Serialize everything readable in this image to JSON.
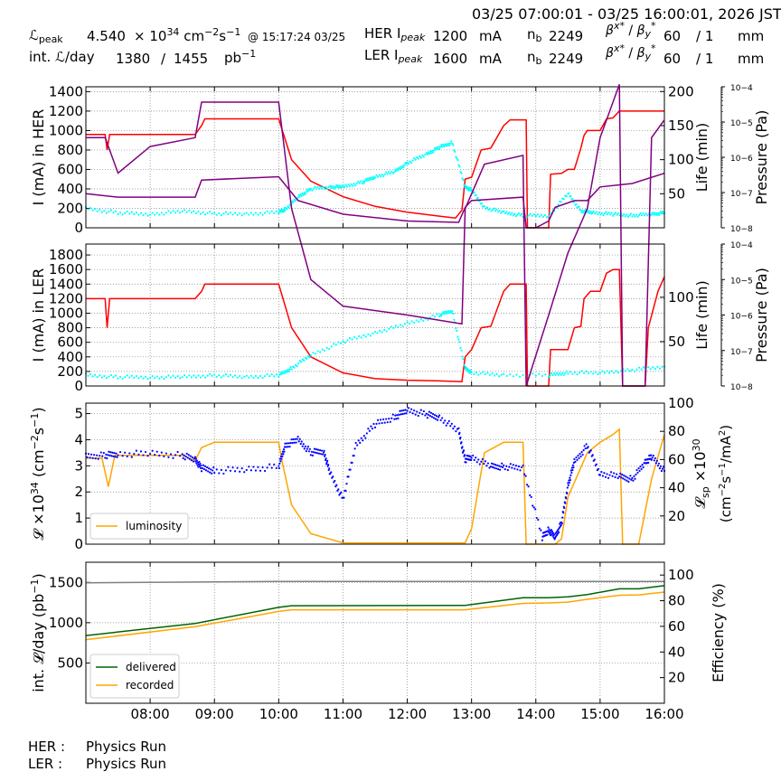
{
  "header": {
    "time_range": "03/25 07:00:01 - 03/25 16:00:01, 2026 JST",
    "lpeak_label": "peak",
    "lpeak_value": "4.540",
    "lpeak_unit_prefix": "× 10",
    "lpeak_exp": "34",
    "lpeak_unit": "cm",
    "lpeak_unit_exp1": "−2",
    "lpeak_unit_s": "s",
    "lpeak_unit_exp2": "−1",
    "lpeak_time": "@ 15:17:24 03/25",
    "intl_label": "int.",
    "intl_suffix": "/day",
    "intl_value1": "1380",
    "intl_sep": "/",
    "intl_value2": "1455",
    "intl_unit": "pb",
    "intl_unit_exp": "−1",
    "her_label": "HER I",
    "her_sub": "peak",
    "her_value": "1200",
    "her_unit": "mA",
    "her_nb_label": "n",
    "her_nb_sub": "b",
    "her_nb": "2249",
    "her_beta_label": "β",
    "her_beta_x": "60",
    "her_beta_sep": "/ 1",
    "her_beta_unit": "mm",
    "ler_label": "LER I",
    "ler_sub": "peak",
    "ler_value": "1600",
    "ler_unit": "mA",
    "ler_nb_label": "n",
    "ler_nb_sub": "b",
    "ler_nb": "2249",
    "ler_beta_x": "60",
    "ler_beta_sep": "/ 1",
    "ler_beta_unit": "mm"
  },
  "footer": {
    "her_label": "HER :",
    "her_status": "Physics Run",
    "ler_label": "LER :",
    "ler_status": "Physics Run"
  },
  "colors": {
    "current": "#ff0000",
    "life": "#00ffff",
    "pressure": "#800080",
    "luminosity": "#ffa500",
    "lsp": "#0000ff",
    "delivered": "#006400",
    "recorded": "#ffa500",
    "efficiency": "#808080",
    "grid": "#808080"
  },
  "chart_data": [
    {
      "type": "line",
      "panel": "HER",
      "x_ticks": [
        "08:00",
        "09:00",
        "10:00",
        "11:00",
        "12:00",
        "13:00",
        "14:00",
        "15:00",
        "16:00"
      ],
      "xlim": [
        7.0,
        16.0
      ],
      "ylabel": "I (mA) in HER",
      "ylim": [
        0,
        1450
      ],
      "yticks": [
        0,
        200,
        400,
        600,
        800,
        1000,
        1200,
        1400
      ],
      "y2label": "Life (min)",
      "y2lim": [
        0,
        207
      ],
      "y2ticks": [
        50,
        100,
        150,
        200
      ],
      "y3label": "Pressure (Pa)",
      "y3ticks": [
        "10−8",
        "10−7",
        "10−6",
        "10−5",
        "10−4"
      ],
      "series": [
        {
          "role": "current",
          "x": [
            7.0,
            7.3,
            7.33,
            7.37,
            7.4,
            8.7,
            8.8,
            8.85,
            10.0,
            10.2,
            10.5,
            11.0,
            11.5,
            12.0,
            12.5,
            12.75,
            12.85,
            12.9,
            13.0,
            13.15,
            13.3,
            13.5,
            13.6,
            13.85,
            13.87,
            14.2,
            14.23,
            14.4,
            14.5,
            14.6,
            14.7,
            14.75,
            14.8,
            15.0,
            15.1,
            15.2,
            15.3,
            16.0
          ],
          "y": [
            960,
            960,
            800,
            960,
            960,
            960,
            1050,
            1120,
            1120,
            700,
            480,
            320,
            220,
            160,
            120,
            100,
            180,
            500,
            520,
            800,
            820,
            1050,
            1110,
            1110,
            0,
            0,
            550,
            560,
            600,
            600,
            820,
            950,
            1000,
            1000,
            1120,
            1130,
            1200,
            1200
          ]
        },
        {
          "role": "life",
          "x": [
            7.0,
            7.5,
            8.0,
            8.5,
            9.0,
            9.5,
            10.0,
            10.1,
            10.3,
            10.5,
            10.8,
            11.0,
            11.3,
            11.5,
            11.8,
            12.0,
            12.3,
            12.5,
            12.7,
            12.9,
            13.0,
            13.2,
            13.5,
            13.8,
            14.2,
            14.5,
            14.7,
            14.9,
            15.2,
            15.5,
            15.8,
            16.0
          ],
          "y": [
            28,
            22,
            20,
            24,
            21,
            20,
            23,
            27,
            45,
            57,
            60,
            60,
            67,
            75,
            82,
            95,
            108,
            118,
            125,
            60,
            55,
            30,
            22,
            18,
            18,
            50,
            25,
            22,
            20,
            18,
            20,
            22
          ]
        },
        {
          "role": "pressure",
          "x": [
            7.0,
            7.5,
            8.0,
            8.7,
            8.8,
            10.0,
            10.3,
            11.0,
            12.0,
            12.8,
            12.9,
            13.0,
            13.8,
            13.85,
            14.0,
            14.2,
            14.3,
            14.6,
            14.8,
            15.0,
            15.5,
            16.0
          ],
          "y": [
            50,
            45,
            45,
            45,
            70,
            75,
            40,
            20,
            10,
            8,
            30,
            40,
            45,
            0,
            0,
            10,
            30,
            40,
            40,
            60,
            65,
            80
          ]
        }
      ]
    },
    {
      "type": "line",
      "panel": "LER",
      "xlim": [
        7.0,
        16.0
      ],
      "ylabel": "I (mA) in LER",
      "ylim": [
        0,
        1950
      ],
      "yticks": [
        0,
        200,
        400,
        600,
        800,
        1000,
        1200,
        1400,
        1600,
        1800
      ],
      "y2label": "Life (min)",
      "y2lim": [
        0,
        160
      ],
      "y2ticks": [
        50,
        100
      ],
      "y3label": "Pressure (Pa)",
      "y3ticks": [
        "10−8",
        "10−7",
        "10−6",
        "10−5",
        "10−4"
      ],
      "series": [
        {
          "role": "current",
          "x": [
            7.0,
            7.3,
            7.33,
            7.37,
            7.4,
            8.7,
            8.8,
            8.85,
            10.0,
            10.2,
            10.5,
            11.0,
            11.5,
            12.0,
            12.5,
            12.85,
            12.9,
            13.0,
            13.15,
            13.3,
            13.5,
            13.6,
            13.85,
            13.87,
            14.2,
            14.23,
            14.5,
            14.6,
            14.7,
            14.75,
            14.85,
            15.0,
            15.1,
            15.2,
            15.3,
            15.35,
            15.7,
            15.75,
            15.9,
            16.0
          ],
          "y": [
            1200,
            1200,
            800,
            1200,
            1200,
            1200,
            1300,
            1400,
            1400,
            800,
            400,
            180,
            100,
            80,
            70,
            60,
            400,
            500,
            800,
            820,
            1300,
            1400,
            1400,
            0,
            0,
            500,
            500,
            800,
            820,
            1200,
            1300,
            1300,
            1550,
            1600,
            1600,
            0,
            0,
            800,
            1300,
            1500
          ]
        },
        {
          "role": "life",
          "x": [
            7.0,
            7.5,
            8.0,
            8.5,
            9.0,
            9.5,
            10.0,
            10.2,
            10.5,
            11.0,
            11.5,
            12.0,
            12.5,
            12.7,
            12.9,
            13.0,
            13.5,
            14.2,
            14.5,
            15.0,
            15.5,
            16.0
          ],
          "y": [
            12,
            10,
            10,
            10,
            12,
            10,
            12,
            20,
            35,
            50,
            60,
            70,
            80,
            85,
            20,
            15,
            12,
            12,
            15,
            15,
            18,
            22
          ]
        },
        {
          "role": "pressure",
          "x": [
            7.0,
            7.3,
            7.5,
            8.0,
            8.7,
            8.8,
            10.0,
            10.2,
            10.5,
            11.0,
            12.0,
            12.85,
            12.9,
            13.2,
            13.8,
            13.85,
            14.2,
            14.5,
            14.8,
            15.0,
            15.3,
            15.35,
            15.7,
            15.8,
            16.0
          ],
          "y": [
            280,
            280,
            240,
            270,
            280,
            320,
            320,
            200,
            120,
            90,
            80,
            70,
            200,
            250,
            260,
            0,
            80,
            150,
            200,
            280,
            340,
            0,
            0,
            280,
            300
          ]
        }
      ]
    },
    {
      "type": "line",
      "panel": "Luminosity",
      "xlim": [
        7.0,
        16.0
      ],
      "ylabel": "× 10 (cm s )",
      "ylim": [
        0,
        5.4
      ],
      "yticks": [
        0,
        1,
        2,
        3,
        4,
        5
      ],
      "y2label": "sp ×10  (cm s /mA )",
      "y2lim": [
        0,
        100
      ],
      "y2ticks": [
        20,
        40,
        60,
        80,
        100
      ],
      "legend": [
        "luminosity"
      ],
      "legend_loc": "lower-left",
      "series": [
        {
          "role": "luminosity",
          "name": "luminosity",
          "x": [
            7.0,
            7.25,
            7.35,
            7.45,
            8.0,
            8.5,
            8.7,
            8.8,
            9.0,
            9.5,
            10.0,
            10.05,
            10.2,
            10.5,
            11.0,
            11.5,
            12.0,
            12.5,
            12.9,
            13.0,
            13.2,
            13.5,
            13.8,
            13.85,
            14.3,
            14.4,
            14.5,
            14.8,
            15.0,
            15.2,
            15.3,
            15.35,
            15.6,
            15.8,
            16.0
          ],
          "y": [
            3.3,
            3.3,
            2.2,
            3.4,
            3.4,
            3.4,
            3.2,
            3.7,
            3.9,
            3.9,
            3.9,
            3.2,
            1.5,
            0.4,
            0.05,
            0.05,
            0.05,
            0.05,
            0.05,
            0.6,
            3.5,
            3.9,
            3.9,
            0.0,
            0.0,
            0.2,
            1.8,
            3.5,
            3.9,
            4.2,
            4.4,
            0.0,
            0.0,
            2.5,
            4.2
          ]
        },
        {
          "role": "lsp",
          "x": [
            7.0,
            7.3,
            7.5,
            8.0,
            8.5,
            8.7,
            8.8,
            9.0,
            9.5,
            10.0,
            10.1,
            10.3,
            10.5,
            10.7,
            10.8,
            11.0,
            11.2,
            11.5,
            11.8,
            12.0,
            12.3,
            12.5,
            12.8,
            12.9,
            13.0,
            13.3,
            13.5,
            13.8,
            14.1,
            14.2,
            14.3,
            14.4,
            14.5,
            14.6,
            14.8,
            15.0,
            15.3,
            15.5,
            15.7,
            15.8,
            16.0
          ],
          "y": [
            62,
            63,
            64,
            64,
            63,
            60,
            54,
            52,
            53,
            55,
            70,
            74,
            65,
            66,
            50,
            32,
            70,
            85,
            90,
            95,
            92,
            90,
            80,
            60,
            62,
            55,
            55,
            54,
            5,
            10,
            5,
            15,
            42,
            58,
            70,
            50,
            48,
            46,
            58,
            62,
            52
          ]
        }
      ]
    },
    {
      "type": "line",
      "panel": "Integrated",
      "xlim": [
        7.0,
        16.0
      ],
      "ylabel": "int. /day (pb )",
      "ylim": [
        0,
        1750
      ],
      "yticks": [
        500,
        1000,
        1500
      ],
      "y2label": "Efficiency (%)",
      "y2lim": [
        0,
        110
      ],
      "y2ticks": [
        20,
        40,
        60,
        80,
        100
      ],
      "legend": [
        "delivered",
        "recorded"
      ],
      "legend_loc": "lower-left",
      "series": [
        {
          "role": "delivered",
          "name": "delivered",
          "x": [
            7.0,
            8.7,
            10.0,
            10.2,
            12.9,
            13.0,
            13.8,
            14.2,
            14.5,
            14.8,
            15.3,
            15.6,
            16.0
          ],
          "y": [
            840,
            990,
            1190,
            1210,
            1215,
            1225,
            1310,
            1310,
            1320,
            1350,
            1420,
            1420,
            1460
          ]
        },
        {
          "role": "recorded",
          "name": "recorded",
          "x": [
            7.0,
            8.7,
            10.0,
            10.2,
            12.9,
            13.0,
            13.8,
            14.2,
            14.5,
            14.8,
            15.3,
            15.6,
            16.0
          ],
          "y": [
            790,
            950,
            1140,
            1160,
            1160,
            1170,
            1240,
            1245,
            1255,
            1290,
            1340,
            1345,
            1380
          ]
        },
        {
          "role": "efficiency",
          "x": [
            7.0,
            10.0,
            13.0,
            16.0
          ],
          "y": [
            94,
            95,
            95,
            95
          ]
        }
      ]
    }
  ]
}
